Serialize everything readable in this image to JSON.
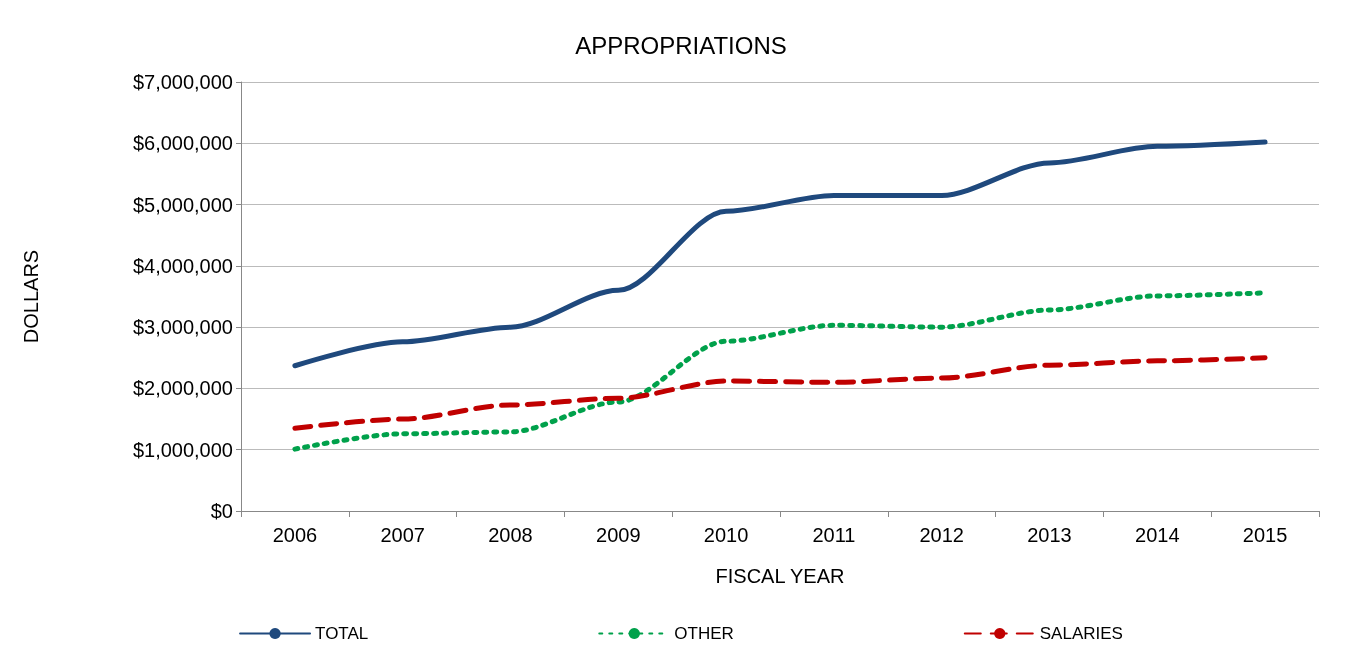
{
  "chart_data": {
    "type": "line",
    "title": "APPROPRIATIONS",
    "xlabel": "FISCAL YEAR",
    "ylabel": "DOLLARS",
    "categories": [
      "2006",
      "2007",
      "2008",
      "2009",
      "2010",
      "2011",
      "2012",
      "2013",
      "2014",
      "2015"
    ],
    "series": [
      {
        "name": "TOTAL",
        "color": "#1f497d",
        "line_style": "solid",
        "values": [
          2370000,
          2760000,
          3000000,
          3600000,
          4890000,
          5150000,
          5150000,
          5680000,
          5950000,
          6020000
        ]
      },
      {
        "name": "OTHER",
        "color": "#00a14b",
        "line_style": "dotted",
        "values": [
          1010000,
          1260000,
          1290000,
          1780000,
          2770000,
          3030000,
          3000000,
          3280000,
          3510000,
          3560000
        ]
      },
      {
        "name": "SALARIES",
        "color": "#c00000",
        "line_style": "dashed",
        "values": [
          1350000,
          1500000,
          1730000,
          1840000,
          2120000,
          2100000,
          2170000,
          2380000,
          2450000,
          2500000
        ]
      }
    ],
    "ylim": [
      0,
      7000000
    ],
    "yticks": [
      {
        "value": 0,
        "label": "$0"
      },
      {
        "value": 1000000,
        "label": "$1,000,000"
      },
      {
        "value": 2000000,
        "label": "$2,000,000"
      },
      {
        "value": 3000000,
        "label": "$3,000,000"
      },
      {
        "value": 4000000,
        "label": "$4,000,000"
      },
      {
        "value": 5000000,
        "label": "$5,000,000"
      },
      {
        "value": 6000000,
        "label": "$6,000,000"
      },
      {
        "value": 7000000,
        "label": "$7,000,000"
      }
    ],
    "grid": "y",
    "legend": "bottom",
    "marker": "none"
  }
}
